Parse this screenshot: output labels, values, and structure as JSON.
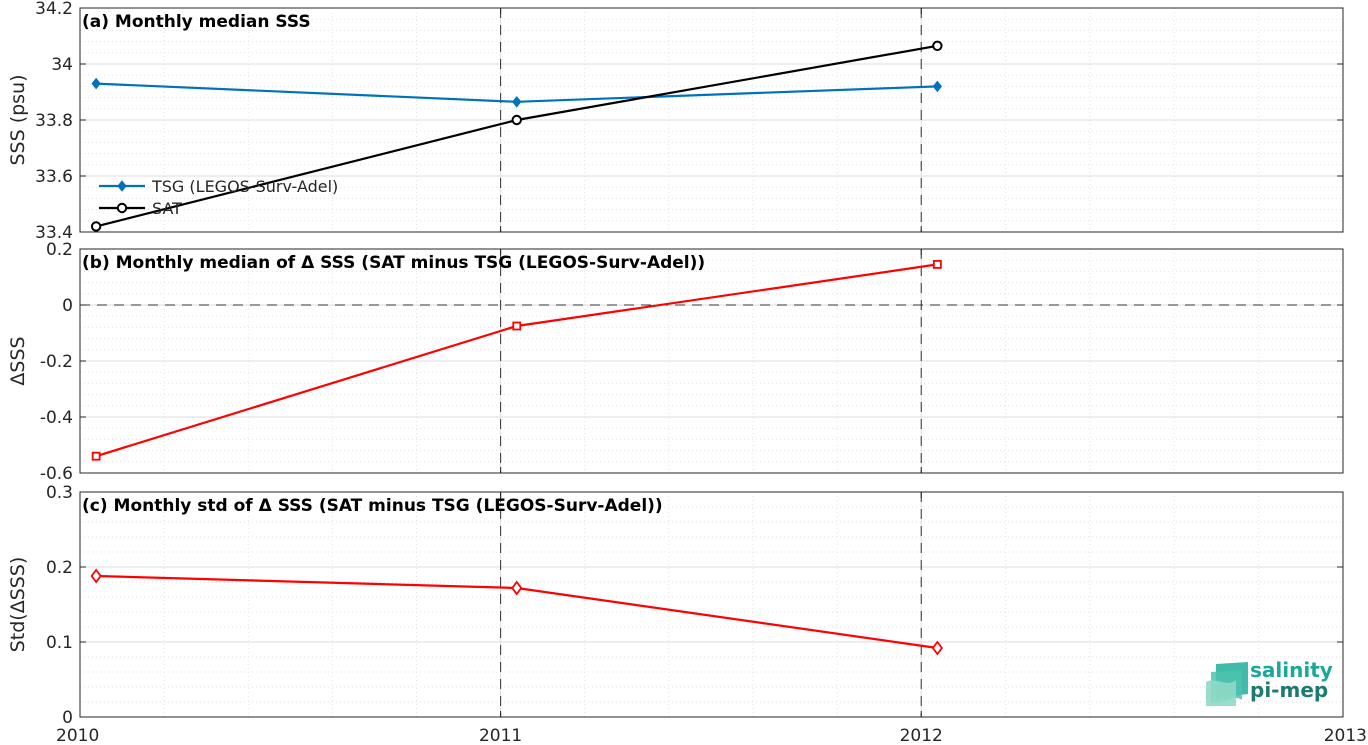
{
  "chart_data": [
    {
      "type": "line",
      "title": "(a) Monthly median SSS",
      "xlabel": "",
      "ylabel": "SSS (psu)",
      "x": [
        "2010-01-15",
        "2011-01-15",
        "2012-01-15"
      ],
      "xlim": [
        "2010-01-01",
        "2013-01-01"
      ],
      "xticks": [
        "2010",
        "2011",
        "2012",
        "2013"
      ],
      "ylim": [
        33.4,
        34.2
      ],
      "yticks": [
        "33.4",
        "33.6",
        "33.8",
        "34",
        "34.2"
      ],
      "grid": true,
      "legend": "lower-left",
      "series": [
        {
          "name": "TSG (LEGOS-Surv-Adel)",
          "values": [
            33.93,
            33.865,
            33.92
          ],
          "color": "#0072BD",
          "marker": "filled-diamond"
        },
        {
          "name": "SAT",
          "values": [
            33.42,
            33.8,
            34.065
          ],
          "color": "#000000",
          "marker": "open-circle"
        }
      ]
    },
    {
      "type": "line",
      "title": "(b) Monthly median of Δ SSS (SAT minus TSG (LEGOS-Surv-Adel))",
      "xlabel": "",
      "ylabel": "ΔSSS",
      "x": [
        "2010-01-15",
        "2011-01-15",
        "2012-01-15"
      ],
      "xlim": [
        "2010-01-01",
        "2013-01-01"
      ],
      "ylim": [
        -0.6,
        0.2
      ],
      "yticks": [
        "-0.6",
        "-0.4",
        "-0.2",
        "0",
        "0.2"
      ],
      "grid": true,
      "series": [
        {
          "values": [
            -0.54,
            -0.075,
            0.145
          ],
          "color": "#FF0000",
          "marker": "open-square"
        }
      ]
    },
    {
      "type": "line",
      "title": "(c) Monthly std of Δ SSS (SAT minus TSG (LEGOS-Surv-Adel))",
      "xlabel": "",
      "ylabel": "Std(ΔSSS)",
      "x": [
        "2010-01-15",
        "2011-01-15",
        "2012-01-15"
      ],
      "xlim": [
        "2010-01-01",
        "2013-01-01"
      ],
      "xticks": [
        "2010",
        "2011",
        "2012",
        "2013"
      ],
      "ylim": [
        0,
        0.3
      ],
      "yticks": [
        "0",
        "0.1",
        "0.2",
        "0.3"
      ],
      "grid": true,
      "series": [
        {
          "values": [
            0.188,
            0.172,
            0.092
          ],
          "color": "#FF0000",
          "marker": "open-diamond"
        }
      ]
    }
  ],
  "logo": {
    "line1": "salinity",
    "line2": "pi-mep",
    "color1": "#1aa89a",
    "color2": "#1e7a70"
  }
}
